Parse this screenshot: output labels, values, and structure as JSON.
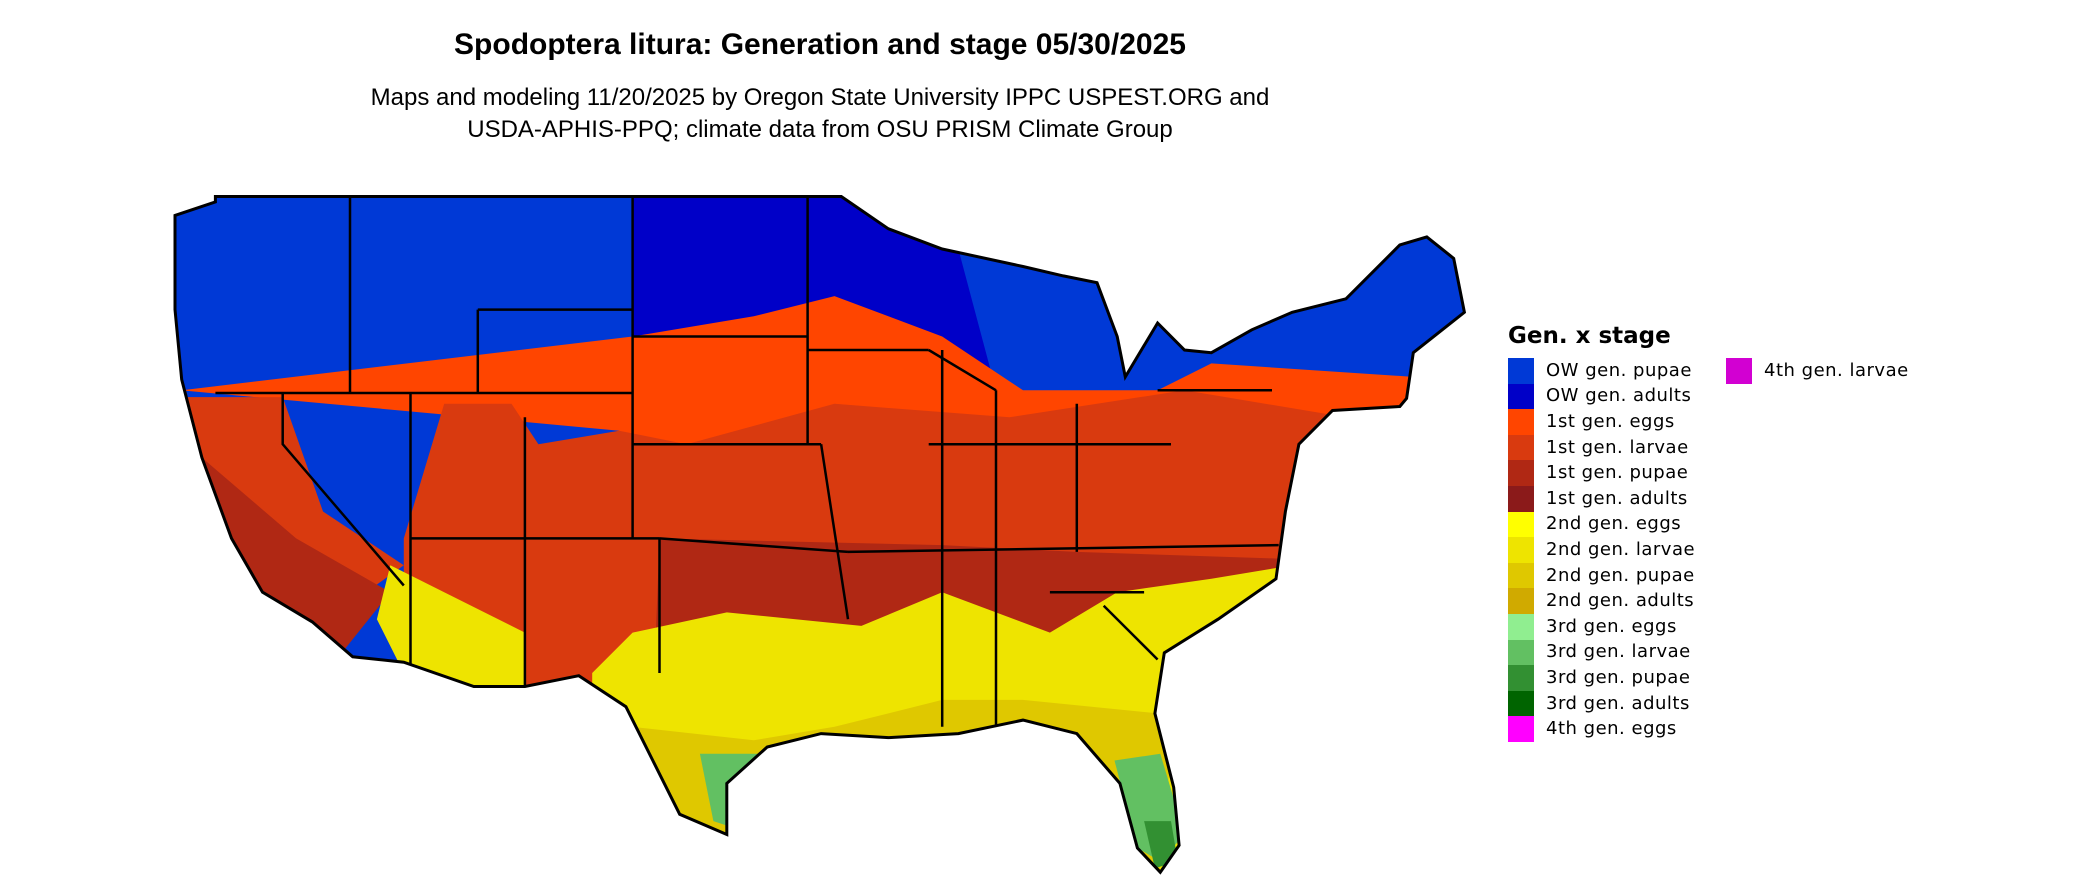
{
  "chart_data": {
    "type": "choropleth-map",
    "title": "Spodoptera litura: Generation and stage 05/30/2025",
    "subtitle_lines": [
      "Maps and modeling 11/20/2025 by Oregon State University IPPC USPEST.ORG and",
      "USDA-APHIS-PPQ; climate data from OSU PRISM Climate Group"
    ],
    "legend": {
      "title": "Gen. x stage",
      "placement": "right",
      "items": [
        {
          "label": "OW gen. pupae",
          "color": "#0039d6"
        },
        {
          "label": "OW gen. adults",
          "color": "#0000c8"
        },
        {
          "label": "1st gen. eggs",
          "color": "#ff4500"
        },
        {
          "label": "1st gen. larvae",
          "color": "#d93a0f"
        },
        {
          "label": "1st gen. pupae",
          "color": "#b02814"
        },
        {
          "label": "1st gen. adults",
          "color": "#8b1a1a"
        },
        {
          "label": "2nd gen. eggs",
          "color": "#ffff00"
        },
        {
          "label": "2nd gen. larvae",
          "color": "#eee400"
        },
        {
          "label": "2nd gen. pupae",
          "color": "#dfc800"
        },
        {
          "label": "2nd gen. adults",
          "color": "#d0aa00"
        },
        {
          "label": "3rd gen. eggs",
          "color": "#90ee90"
        },
        {
          "label": "3rd gen. larvae",
          "color": "#62c062"
        },
        {
          "label": "3rd gen. pupae",
          "color": "#329032"
        },
        {
          "label": "3rd gen. adults",
          "color": "#006400"
        },
        {
          "label": "4th gen. eggs",
          "color": "#ff00ff"
        },
        {
          "label": "4th gen. larvae",
          "color": "#d200d2"
        }
      ]
    }
  }
}
